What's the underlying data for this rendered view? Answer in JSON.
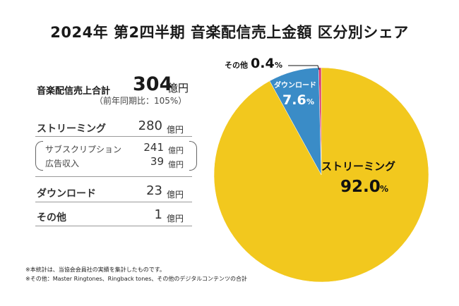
{
  "title": "2024年 第2四半期 音楽配信売上金額 区分別シェア",
  "summary": {
    "total_label": "音楽配信売上合計",
    "total_value": "304",
    "total_unit": "億円",
    "yoy": "（前年同期比：105%）"
  },
  "breakdown": {
    "streaming": {
      "label": "ストリーミング",
      "value": "280",
      "unit": "億円"
    },
    "subscription": {
      "label": "サブスクリプション",
      "value": "241",
      "unit": "億円"
    },
    "ad_revenue": {
      "label": "広告収入",
      "value": "39",
      "unit": "億円"
    },
    "download": {
      "label": "ダウンロード",
      "value": "23",
      "unit": "億円"
    },
    "other": {
      "label": "その他",
      "value": "1",
      "unit": "億円"
    }
  },
  "footnotes": [
    "※本統計は、当協会会員社の実績を集計したものです。",
    "※その他：Master Ringtones、Ringback tones、その他のデジタルコンテンツの合計"
  ],
  "chart_data": {
    "type": "pie",
    "title": "2024年 第2四半期 音楽配信売上金額 区分別シェア",
    "slices": [
      {
        "label": "その他",
        "value": 0.4,
        "display": "0.4",
        "unit": "%",
        "color": "#d6336c"
      },
      {
        "label": "ダウンロード",
        "value": 7.6,
        "display": "7.6",
        "unit": "%",
        "color": "#3a8cc7"
      },
      {
        "label": "ストリーミング",
        "value": 92.0,
        "display": "92.0",
        "unit": "%",
        "color": "#f2c81e"
      }
    ]
  }
}
